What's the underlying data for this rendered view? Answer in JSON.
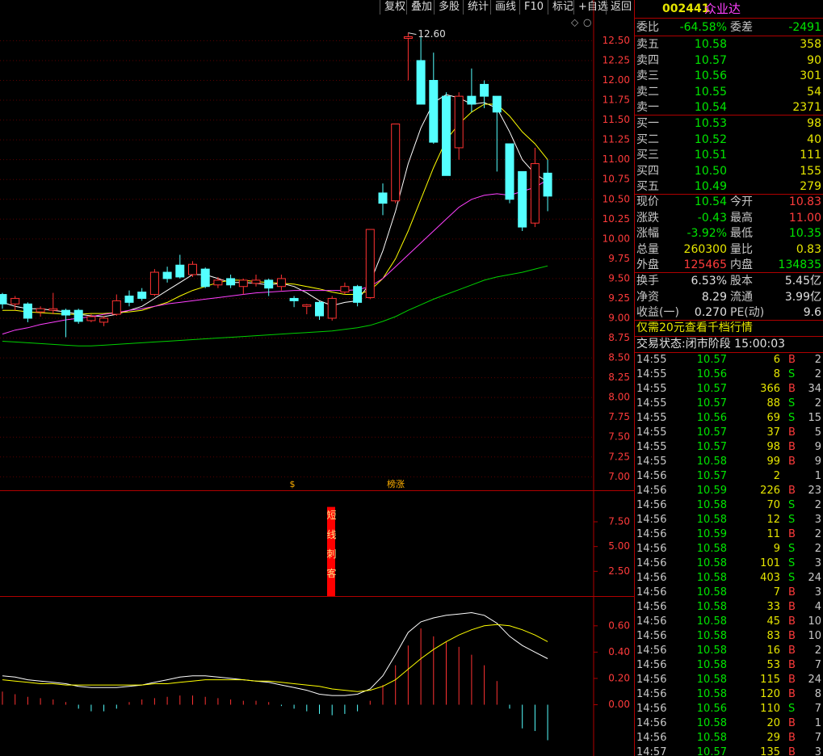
{
  "toolbar": [
    "复权",
    "叠加",
    "多股",
    "统计",
    "画线",
    "F10",
    "标记",
    "+自选",
    "返回"
  ],
  "stock": {
    "code": "002441",
    "name": "众业达"
  },
  "order_book": {
    "ratio_label": "委比",
    "ratio": "-64.58%",
    "diff_label": "委差",
    "diff": "-2491",
    "asks": [
      {
        "label": "卖五",
        "price": "10.58",
        "volume": "358"
      },
      {
        "label": "卖四",
        "price": "10.57",
        "volume": "90"
      },
      {
        "label": "卖三",
        "price": "10.56",
        "volume": "301"
      },
      {
        "label": "卖二",
        "price": "10.55",
        "volume": "54"
      },
      {
        "label": "卖一",
        "price": "10.54",
        "volume": "2371"
      }
    ],
    "bids": [
      {
        "label": "买一",
        "price": "10.53",
        "volume": "98"
      },
      {
        "label": "买二",
        "price": "10.52",
        "volume": "40"
      },
      {
        "label": "买三",
        "price": "10.51",
        "volume": "111"
      },
      {
        "label": "买四",
        "price": "10.50",
        "volume": "155"
      },
      {
        "label": "买五",
        "price": "10.49",
        "volume": "279"
      }
    ]
  },
  "stats": [
    {
      "l1": "现价",
      "v1": "10.54",
      "c1": "#00e600",
      "l2": "今开",
      "v2": "10.83",
      "c2": "#ff3b3b"
    },
    {
      "l1": "涨跌",
      "v1": "-0.43",
      "c1": "#00e600",
      "l2": "最高",
      "v2": "11.00",
      "c2": "#ff3b3b"
    },
    {
      "l1": "涨幅",
      "v1": "-3.92%",
      "c1": "#00e600",
      "l2": "最低",
      "v2": "10.35",
      "c2": "#00e600"
    },
    {
      "l1": "总量",
      "v1": "260300",
      "c1": "#e6e600",
      "l2": "量比",
      "v2": "0.83",
      "c2": "#e6e600"
    },
    {
      "l1": "外盘",
      "v1": "125465",
      "c1": "#ff3b3b",
      "l2": "内盘",
      "v2": "134835",
      "c2": "#00e600"
    },
    {
      "l1": "换手",
      "v1": "6.53%",
      "c1": "#e0e0e0",
      "l2": "股本",
      "v2": "5.45亿",
      "c2": "#e0e0e0"
    },
    {
      "l1": "净资",
      "v1": "8.29",
      "c1": "#e0e0e0",
      "l2": "流通",
      "v2": "3.99亿",
      "c2": "#e0e0e0"
    },
    {
      "l1": "收益(一)",
      "v1": "0.270",
      "c1": "#e0e0e0",
      "l2": "PE(动)",
      "v2": "9.6",
      "c2": "#e0e0e0"
    }
  ],
  "promo": "仅需20元查看千档行情",
  "status": "交易状态:闭市阶段 15:00:03",
  "trades": [
    [
      "14:55",
      "10.57",
      "6",
      "B",
      "2"
    ],
    [
      "14:55",
      "10.56",
      "8",
      "S",
      "2"
    ],
    [
      "14:55",
      "10.57",
      "366",
      "B",
      "34"
    ],
    [
      "14:55",
      "10.57",
      "88",
      "S",
      "2"
    ],
    [
      "14:55",
      "10.56",
      "69",
      "S",
      "15"
    ],
    [
      "14:55",
      "10.57",
      "37",
      "B",
      "5"
    ],
    [
      "14:55",
      "10.57",
      "98",
      "B",
      "9"
    ],
    [
      "14:55",
      "10.58",
      "99",
      "B",
      "9"
    ],
    [
      "14:56",
      "10.57",
      "2",
      null,
      "1"
    ],
    [
      "14:56",
      "10.59",
      "226",
      "B",
      "23"
    ],
    [
      "14:56",
      "10.58",
      "70",
      "S",
      "2"
    ],
    [
      "14:56",
      "10.58",
      "12",
      "S",
      "3"
    ],
    [
      "14:56",
      "10.59",
      "11",
      "B",
      "2"
    ],
    [
      "14:56",
      "10.58",
      "9",
      "S",
      "2"
    ],
    [
      "14:56",
      "10.58",
      "101",
      "S",
      "3"
    ],
    [
      "14:56",
      "10.58",
      "403",
      "S",
      "24"
    ],
    [
      "14:56",
      "10.58",
      "7",
      "B",
      "3"
    ],
    [
      "14:56",
      "10.58",
      "33",
      "B",
      "4"
    ],
    [
      "14:56",
      "10.58",
      "45",
      "B",
      "10"
    ],
    [
      "14:56",
      "10.58",
      "83",
      "B",
      "10"
    ],
    [
      "14:56",
      "10.58",
      "16",
      "B",
      "2"
    ],
    [
      "14:56",
      "10.58",
      "53",
      "B",
      "7"
    ],
    [
      "14:56",
      "10.58",
      "115",
      "B",
      "24"
    ],
    [
      "14:56",
      "10.58",
      "120",
      "B",
      "8"
    ],
    [
      "14:56",
      "10.56",
      "110",
      "S",
      "7"
    ],
    [
      "14:56",
      "10.58",
      "20",
      "B",
      "1"
    ],
    [
      "14:56",
      "10.58",
      "29",
      "B",
      "7"
    ],
    [
      "14:57",
      "10.57",
      "135",
      "B",
      "3"
    ]
  ],
  "chart_data": [
    {
      "type": "candlestick",
      "up_color": "#ff3232",
      "down_color": "#54ffff",
      "grid": true,
      "ylim": [
        6.83,
        12.81
      ],
      "yticks": [
        {
          "value": 12.5,
          "label": "12.50"
        },
        12.25,
        {
          "value": 12,
          "label": "12.00"
        },
        11.75,
        {
          "value": 11.5,
          "label": "11.50"
        },
        11.25,
        {
          "value": 11,
          "label": "11.00"
        },
        10.75,
        {
          "value": 10.5,
          "label": "10.50"
        },
        10.25,
        {
          "value": 10,
          "label": "10.00"
        },
        9.75,
        {
          "value": 9.5,
          "label": "9.50"
        },
        9.25,
        {
          "value": 9,
          "label": "9.00"
        },
        8.75,
        {
          "value": 8.5,
          "label": "8.50"
        },
        8.25,
        {
          "value": 8,
          "label": "8.00"
        },
        7.75,
        {
          "value": 7.5,
          "label": "7.50"
        },
        7.25,
        {
          "value": 7,
          "label": "7.00"
        }
      ],
      "open": [
        9.3,
        9.18,
        9.18,
        9.08,
        9.1,
        9.1,
        9.1,
        8.97,
        8.95,
        9.05,
        9.28,
        9.33,
        9.3,
        9.58,
        9.67,
        9.55,
        9.62,
        9.42,
        9.5,
        9.4,
        9.44,
        9.48,
        9.4,
        9.25,
        9.15,
        9.2,
        9.0,
        9.33,
        9.4,
        9.26,
        10.58,
        10.48,
        12.53,
        12.25,
        12.0,
        11.8,
        11.15,
        11.8,
        11.95,
        11.8,
        11.2,
        10.85,
        10.2,
        10.83
      ],
      "high": [
        9.32,
        9.28,
        9.2,
        9.15,
        9.32,
        9.12,
        9.12,
        9.05,
        9.03,
        9.3,
        9.35,
        9.38,
        9.62,
        9.65,
        9.8,
        9.72,
        9.64,
        9.52,
        9.55,
        9.5,
        9.55,
        9.5,
        9.55,
        9.28,
        9.18,
        9.22,
        9.28,
        9.45,
        9.42,
        10.12,
        10.7,
        11.45,
        12.6,
        12.55,
        12.35,
        11.85,
        11.85,
        12.15,
        12.0,
        11.8,
        11.2,
        10.85,
        11.15,
        11.0
      ],
      "low": [
        9.12,
        9.1,
        8.95,
        9.02,
        9.05,
        8.76,
        8.93,
        8.95,
        8.9,
        9.03,
        9.15,
        9.22,
        9.28,
        9.45,
        9.5,
        9.52,
        9.38,
        9.38,
        9.38,
        9.3,
        9.4,
        9.28,
        9.35,
        9.14,
        9.05,
        8.98,
        8.97,
        9.3,
        9.15,
        9.24,
        10.3,
        10.45,
        12.0,
        11.7,
        11.2,
        10.8,
        11.0,
        11.6,
        11.65,
        10.85,
        10.45,
        10.1,
        10.15,
        10.35
      ],
      "close": [
        9.18,
        9.25,
        9.0,
        9.12,
        9.12,
        9.04,
        8.96,
        9.02,
        9.0,
        9.22,
        9.2,
        9.25,
        9.58,
        9.5,
        9.52,
        9.68,
        9.4,
        9.48,
        9.42,
        9.48,
        9.48,
        9.38,
        9.5,
        9.22,
        9.17,
        9.03,
        9.25,
        9.4,
        9.2,
        10.12,
        10.45,
        11.45,
        12.55,
        11.7,
        11.22,
        10.8,
        11.8,
        11.7,
        11.8,
        11.6,
        10.5,
        10.15,
        10.95,
        10.54
      ],
      "high_label": {
        "value": 12.6,
        "label": "12.60"
      },
      "annotations": [
        "$",
        "榜涨"
      ],
      "series": [
        {
          "color": "#ffffff",
          "values": [
            9.2,
            9.15,
            9.12,
            9.12,
            9.1,
            9.08,
            9.05,
            9.03,
            9.02,
            9.05,
            9.1,
            9.15,
            9.25,
            9.35,
            9.45,
            9.55,
            9.55,
            9.5,
            9.45,
            9.45,
            9.44,
            9.42,
            9.44,
            9.4,
            9.32,
            9.22,
            9.16,
            9.2,
            9.22,
            9.45,
            9.85,
            10.35,
            10.95,
            11.4,
            11.72,
            11.82,
            11.78,
            11.7,
            11.72,
            11.65,
            11.35,
            11.0,
            10.82,
            10.72
          ]
        },
        {
          "color": "#ffff00",
          "values": [
            9.1,
            9.1,
            9.08,
            9.07,
            9.06,
            9.05,
            9.05,
            9.06,
            9.06,
            9.07,
            9.08,
            9.1,
            9.15,
            9.2,
            9.28,
            9.35,
            9.4,
            9.45,
            9.48,
            9.48,
            9.46,
            9.45,
            9.44,
            9.43,
            9.4,
            9.37,
            9.33,
            9.3,
            9.3,
            9.35,
            9.5,
            9.75,
            10.1,
            10.5,
            10.9,
            11.25,
            11.45,
            11.6,
            11.7,
            11.7,
            11.55,
            11.35,
            11.2,
            11.0
          ]
        },
        {
          "color": "#ff40ff",
          "values": [
            8.8,
            8.85,
            8.88,
            8.92,
            8.95,
            8.98,
            9.0,
            9.02,
            9.05,
            9.07,
            9.1,
            9.12,
            9.15,
            9.18,
            9.2,
            9.22,
            9.24,
            9.26,
            9.28,
            9.3,
            9.32,
            9.33,
            9.34,
            9.35,
            9.35,
            9.35,
            9.35,
            9.35,
            9.36,
            9.4,
            9.5,
            9.65,
            9.8,
            9.95,
            10.1,
            10.25,
            10.4,
            10.5,
            10.55,
            10.57,
            10.55,
            10.6,
            10.65,
            10.75
          ]
        },
        {
          "color": "#00d000",
          "values": [
            8.71,
            8.7,
            8.69,
            8.68,
            8.67,
            8.66,
            8.65,
            8.65,
            8.66,
            8.67,
            8.68,
            8.69,
            8.7,
            8.71,
            8.72,
            8.73,
            8.74,
            8.75,
            8.76,
            8.77,
            8.78,
            8.79,
            8.8,
            8.81,
            8.82,
            8.83,
            8.84,
            8.86,
            8.88,
            8.91,
            8.96,
            9.02,
            9.1,
            9.17,
            9.24,
            9.3,
            9.36,
            9.42,
            9.48,
            9.52,
            9.55,
            9.58,
            9.62,
            9.66
          ]
        }
      ]
    },
    {
      "type": "signal",
      "ylim": [
        0,
        10.6
      ],
      "yticks": [
        {
          "value": 7.5,
          "label": "7.50"
        },
        {
          "value": 5,
          "label": "5.00"
        },
        {
          "value": 2.5,
          "label": "2.50"
        }
      ],
      "value": 9,
      "label": "短线刺客",
      "color": "#ff0000"
    },
    {
      "type": "macd",
      "ylim": [
        -0.39,
        0.82
      ],
      "yticks": [
        {
          "value": 0.6,
          "label": "0.60"
        },
        {
          "value": 0.4,
          "label": "0.40"
        },
        {
          "value": 0.2,
          "label": "0.20"
        },
        {
          "value": 0,
          "label": "0.00"
        }
      ],
      "values": [
        0.1,
        0.08,
        0.06,
        0.05,
        0.04,
        0.02,
        -0.03,
        -0.05,
        -0.05,
        -0.03,
        0.02,
        0.04,
        0.05,
        0.06,
        0.07,
        0.07,
        0.06,
        0.05,
        0.04,
        0.03,
        0.03,
        0.02,
        -0.01,
        -0.03,
        -0.05,
        -0.07,
        -0.08,
        -0.07,
        -0.05,
        0.03,
        0.15,
        0.3,
        0.45,
        0.58,
        0.52,
        0.48,
        0.44,
        0.38,
        0.3,
        0.18,
        -0.03,
        -0.18,
        -0.2,
        -0.27
      ],
      "series": [
        {
          "color": "#ffffff",
          "values": [
            0.22,
            0.21,
            0.19,
            0.18,
            0.17,
            0.16,
            0.14,
            0.13,
            0.13,
            0.13,
            0.14,
            0.15,
            0.17,
            0.19,
            0.21,
            0.22,
            0.22,
            0.21,
            0.2,
            0.19,
            0.18,
            0.17,
            0.15,
            0.13,
            0.11,
            0.08,
            0.07,
            0.07,
            0.08,
            0.12,
            0.22,
            0.38,
            0.55,
            0.63,
            0.66,
            0.68,
            0.69,
            0.7,
            0.68,
            0.62,
            0.52,
            0.45,
            0.4,
            0.35
          ]
        },
        {
          "color": "#ffff00",
          "values": [
            0.19,
            0.18,
            0.17,
            0.16,
            0.16,
            0.15,
            0.15,
            0.15,
            0.15,
            0.15,
            0.15,
            0.15,
            0.16,
            0.16,
            0.17,
            0.18,
            0.19,
            0.19,
            0.19,
            0.19,
            0.18,
            0.18,
            0.17,
            0.16,
            0.15,
            0.14,
            0.12,
            0.11,
            0.1,
            0.11,
            0.14,
            0.19,
            0.27,
            0.35,
            0.42,
            0.48,
            0.53,
            0.57,
            0.6,
            0.61,
            0.6,
            0.57,
            0.53,
            0.48
          ]
        }
      ]
    }
  ]
}
